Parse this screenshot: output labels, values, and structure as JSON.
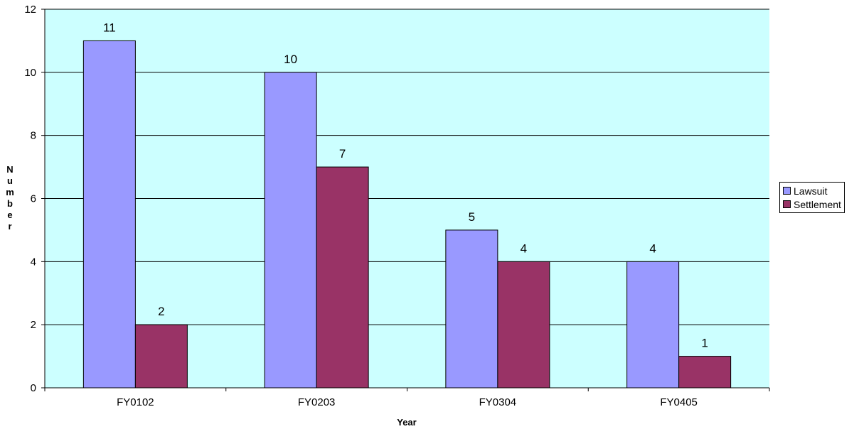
{
  "chart_data": {
    "type": "bar",
    "categories": [
      "FY0102",
      "FY0203",
      "FY0304",
      "FY0405"
    ],
    "series": [
      {
        "name": "Lawsuit",
        "values": [
          11,
          10,
          5,
          4
        ],
        "color": "#9999ff"
      },
      {
        "name": "Settlement",
        "values": [
          2,
          7,
          4,
          1
        ],
        "color": "#993366"
      }
    ],
    "xlabel": "Year",
    "ylabel": "Number",
    "ylim": [
      0,
      12
    ],
    "yticks": [
      0,
      2,
      4,
      6,
      8,
      10,
      12
    ],
    "plot_background": "#ccffff",
    "grid": true,
    "legend": "right"
  }
}
